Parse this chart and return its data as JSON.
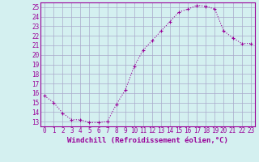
{
  "x": [
    0,
    1,
    2,
    3,
    4,
    5,
    6,
    7,
    8,
    9,
    10,
    11,
    12,
    13,
    14,
    15,
    16,
    17,
    18,
    19,
    20,
    21,
    22,
    23
  ],
  "y": [
    15.7,
    15.0,
    13.9,
    13.2,
    13.2,
    12.9,
    12.9,
    13.0,
    14.8,
    16.3,
    18.8,
    20.5,
    21.5,
    22.5,
    23.5,
    24.5,
    24.8,
    25.2,
    25.1,
    24.8,
    22.5,
    21.8,
    21.2,
    21.2
  ],
  "line_color": "#990099",
  "marker": "+",
  "background_color": "#d4f0f0",
  "grid_color": "#aaaacc",
  "xlabel": "Windchill (Refroidissement éolien,°C)",
  "xlim": [
    -0.5,
    23.5
  ],
  "ylim": [
    12.5,
    25.5
  ],
  "yticks": [
    13,
    14,
    15,
    16,
    17,
    18,
    19,
    20,
    21,
    22,
    23,
    24,
    25
  ],
  "xticks": [
    0,
    1,
    2,
    3,
    4,
    5,
    6,
    7,
    8,
    9,
    10,
    11,
    12,
    13,
    14,
    15,
    16,
    17,
    18,
    19,
    20,
    21,
    22,
    23
  ],
  "tick_fontsize": 5.5,
  "xlabel_fontsize": 6.5,
  "tick_color": "#990099",
  "axis_color": "#990099",
  "spine_color": "#990099"
}
